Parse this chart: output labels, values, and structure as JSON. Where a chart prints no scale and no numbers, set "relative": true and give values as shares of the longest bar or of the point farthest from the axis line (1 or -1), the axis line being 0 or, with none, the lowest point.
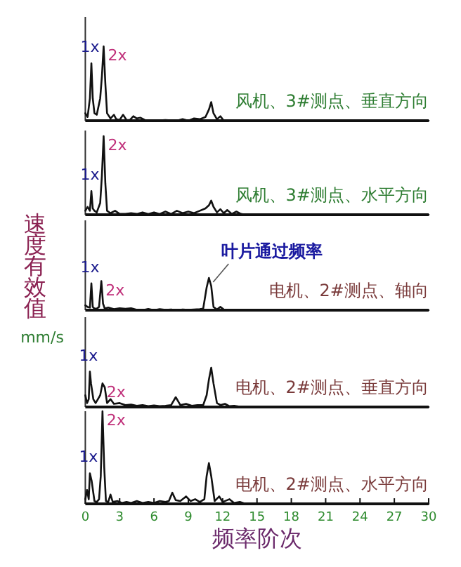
{
  "chart_data": [
    {
      "type": "line",
      "relative": true,
      "xlim": [
        0,
        30
      ],
      "tick_labels": false,
      "x": [
        0,
        0.2,
        0.4,
        0.53,
        0.65,
        0.8,
        1.0,
        1.3,
        1.45,
        1.6,
        1.75,
        1.9,
        2.2,
        2.5,
        2.7,
        3.0,
        3.3,
        3.6,
        3.9,
        4.2,
        4.5,
        4.8,
        5.2,
        6.0,
        7.0,
        8.0,
        8.5,
        9.0,
        9.5,
        10.0,
        10.5,
        10.8,
        11.0,
        11.2,
        11.5,
        11.8,
        12.1,
        12.4,
        13,
        20,
        30
      ],
      "series": [
        {
          "color": "#111111",
          "values": [
            0.1,
            0.05,
            0.3,
            0.77,
            0.3,
            0.1,
            0.08,
            0.3,
            0.6,
            1,
            0.5,
            0.1,
            0.03,
            0.08,
            0.02,
            0.01,
            0.08,
            0.01,
            0.01,
            0.06,
            0.03,
            0.04,
            0.01,
            0,
            0.01,
            0,
            0.02,
            0,
            0.03,
            0.02,
            0.05,
            0.15,
            0.25,
            0.1,
            0.02,
            0.06,
            0,
            0,
            0,
            0,
            0
          ]
        }
      ],
      "annotations": [
        "风机、3#测点、垂直方向",
        {
          "text": "1x",
          "x": 0.53,
          "y": 0.77
        },
        {
          "text": "2x",
          "x": 1.6,
          "y": 1
        }
      ]
    },
    {
      "type": "line",
      "relative": true,
      "xlim": [
        0,
        30
      ],
      "tick_labels": false,
      "x": [
        0,
        0.2,
        0.4,
        0.53,
        0.65,
        0.8,
        1.0,
        1.3,
        1.45,
        1.6,
        1.75,
        1.9,
        2.2,
        2.6,
        3.0,
        3.5,
        4.0,
        4.5,
        5.0,
        5.5,
        6.0,
        6.5,
        7.0,
        7.5,
        8.0,
        8.5,
        9.0,
        9.5,
        10.0,
        10.5,
        10.8,
        11.0,
        11.2,
        11.5,
        11.8,
        12.1,
        12.4,
        12.8,
        13.2,
        13.6,
        14,
        20,
        30
      ],
      "series": [
        {
          "color": "#111111",
          "values": [
            0.05,
            0.1,
            0.05,
            0.3,
            0.08,
            0.05,
            0.03,
            0.15,
            0.5,
            1,
            0.4,
            0.05,
            0.02,
            0.05,
            0.01,
            0.01,
            0.02,
            0.01,
            0.03,
            0.01,
            0.03,
            0.01,
            0.04,
            0.01,
            0.05,
            0.02,
            0.04,
            0.02,
            0.05,
            0.08,
            0.12,
            0.18,
            0.1,
            0.03,
            0.07,
            0.02,
            0.06,
            0.01,
            0.04,
            0.01,
            0,
            0,
            0
          ]
        }
      ],
      "annotations": [
        "风机、3#测点、水平方向",
        {
          "text": "1x",
          "x": 0.53,
          "y": 0.3
        },
        {
          "text": "2x",
          "x": 1.6,
          "y": 1
        }
      ]
    },
    {
      "type": "line",
      "relative": true,
      "xlim": [
        0,
        30
      ],
      "tick_labels": false,
      "ylabel": "速度有效值",
      "x": [
        0,
        0.2,
        0.4,
        0.53,
        0.65,
        0.8,
        1.0,
        1.2,
        1.4,
        1.55,
        1.7,
        2.0,
        2.5,
        3.0,
        3.5,
        4.0,
        4.5,
        5.0,
        5.5,
        6.0,
        6.5,
        7.0,
        7.5,
        8.0,
        8.5,
        9.0,
        9.5,
        10.0,
        10.3,
        10.6,
        10.8,
        11.0,
        11.2,
        11.5,
        11.8,
        12.1,
        12.5,
        13,
        20,
        30
      ],
      "series": [
        {
          "color": "#111111",
          "values": [
            0.15,
            0.1,
            0.08,
            0.83,
            0.1,
            0.05,
            0.05,
            0.1,
            0.9,
            0.2,
            0.05,
            0.08,
            0.03,
            0.06,
            0.04,
            0.06,
            0.01,
            0,
            0.04,
            0,
            0.03,
            0.01,
            0.02,
            0,
            0.02,
            0.01,
            0.02,
            0.03,
            0.05,
            0.7,
            1,
            0.75,
            0.1,
            0.02,
            0.1,
            0.02,
            0,
            0,
            0,
            0
          ]
        }
      ],
      "annotations": [
        "电机、2#测点、轴向",
        {
          "text": "1x",
          "x": 0.53,
          "y": 0.83
        },
        {
          "text": "2x",
          "x": 1.4,
          "y": 0.9
        },
        {
          "text": "叶片通过频率",
          "x": 10.8,
          "y": 1
        }
      ]
    },
    {
      "type": "line",
      "relative": true,
      "xlim": [
        0,
        30
      ],
      "tick_labels": false,
      "ylabel": "mm/s",
      "x": [
        0,
        0.15,
        0.3,
        0.4,
        0.5,
        0.7,
        0.9,
        1.1,
        1.3,
        1.5,
        1.7,
        1.9,
        2.2,
        2.5,
        3.0,
        3.5,
        4.0,
        4.5,
        5.0,
        5.5,
        6.0,
        6.5,
        7.0,
        7.5,
        7.9,
        8.3,
        8.8,
        9.3,
        9.8,
        10.3,
        10.6,
        10.8,
        11.0,
        11.2,
        11.5,
        11.8,
        12.2,
        12.6,
        13.0,
        13.5,
        14,
        20,
        30
      ],
      "series": [
        {
          "color": "#111111",
          "values": [
            0.3,
            0.1,
            0.2,
            0.9,
            0.6,
            0.2,
            0.1,
            0.2,
            0.3,
            0.6,
            0.5,
            0.1,
            0.2,
            0.08,
            0.1,
            0.05,
            0.06,
            0.03,
            0.05,
            0.02,
            0.04,
            0.02,
            0.03,
            0.05,
            0.25,
            0.05,
            0.08,
            0.03,
            0.05,
            0.05,
            0.3,
            0.7,
            1,
            0.6,
            0.1,
            0.05,
            0.08,
            0.02,
            0.03,
            0.01,
            0,
            0,
            0
          ]
        }
      ],
      "annotations": [
        "电机、2#测点、垂直方向",
        {
          "text": "1x",
          "x": 0.4,
          "y": 0.9
        },
        {
          "text": "2x",
          "x": 1.5,
          "y": 0.6
        }
      ]
    },
    {
      "type": "line",
      "relative": true,
      "xlim": [
        0,
        30
      ],
      "xticks": [
        0,
        3,
        6,
        9,
        12,
        15,
        18,
        21,
        24,
        27,
        30
      ],
      "tick_labels": "x",
      "xlabel": "频率阶次",
      "x": [
        0,
        0.15,
        0.3,
        0.4,
        0.55,
        0.8,
        1.0,
        1.2,
        1.35,
        1.5,
        1.65,
        1.8,
        2.0,
        2.2,
        2.4,
        2.8,
        3.2,
        3.6,
        4.0,
        4.5,
        5.0,
        5.5,
        6.0,
        6.5,
        7.0,
        7.3,
        7.6,
        7.9,
        8.3,
        8.8,
        9.2,
        9.6,
        10.0,
        10.4,
        10.6,
        10.8,
        11.0,
        11.3,
        11.7,
        12.0,
        12.6,
        13.0,
        13.5,
        14,
        20,
        30
      ],
      "series": [
        {
          "color": "#111111",
          "values": [
            0.05,
            0.15,
            0.05,
            0.33,
            0.25,
            0.03,
            0.02,
            0.05,
            0.3,
            1,
            0.4,
            0.03,
            0.02,
            0.1,
            0.02,
            0.03,
            0.01,
            0.02,
            0.01,
            0.03,
            0.01,
            0.02,
            0.01,
            0.03,
            0.02,
            0.03,
            0.12,
            0.04,
            0.03,
            0.08,
            0.03,
            0.05,
            0.02,
            0.05,
            0.3,
            0.44,
            0.3,
            0.03,
            0.08,
            0.02,
            0.05,
            0.01,
            0.02,
            0,
            0,
            0
          ]
        }
      ],
      "annotations": [
        "电机、2#测点、水平方向",
        {
          "text": "1x",
          "x": 0.4,
          "y": 0.33
        },
        {
          "text": "2x",
          "x": 1.5,
          "y": 1
        }
      ]
    }
  ]
}
